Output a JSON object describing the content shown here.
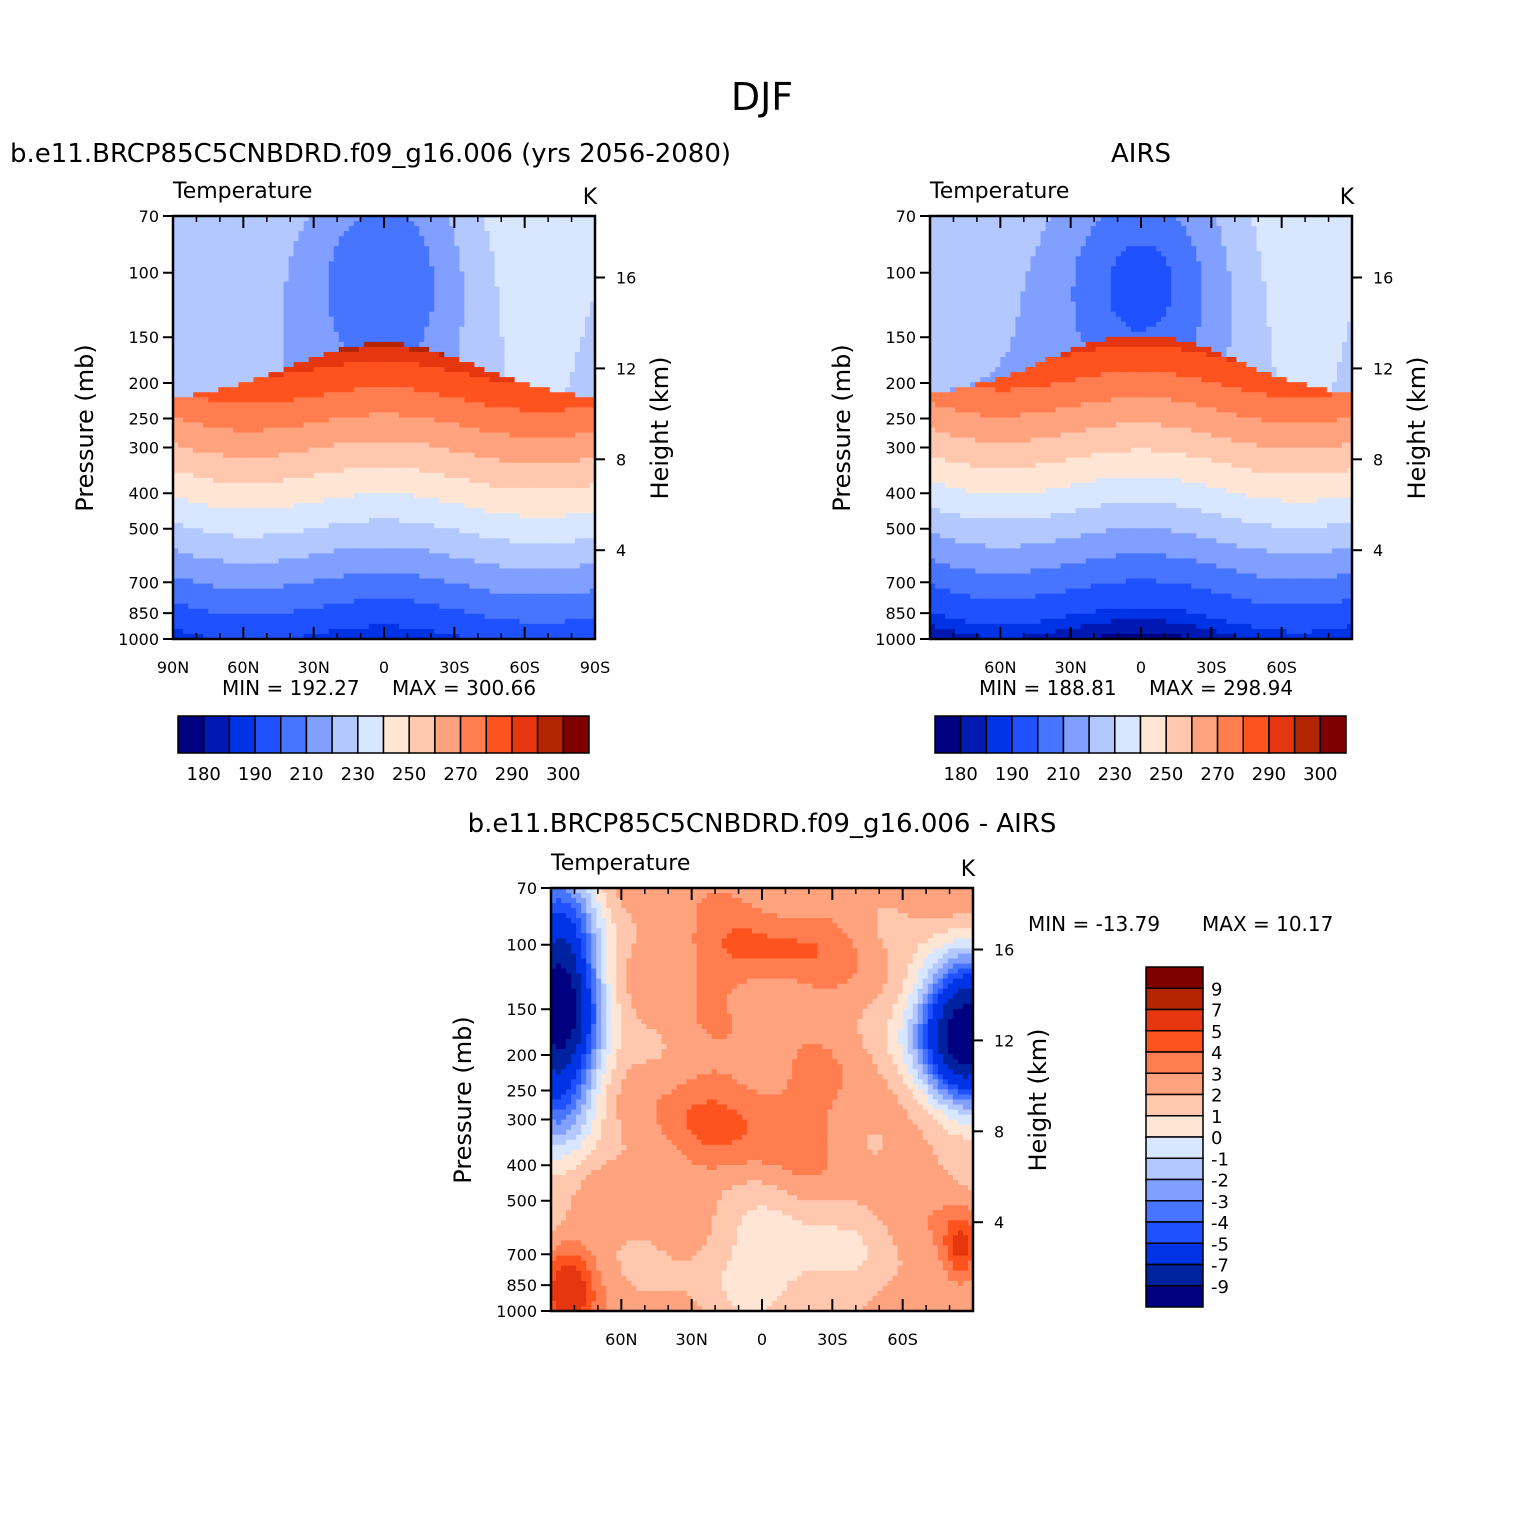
{
  "page": {
    "title": "DJF"
  },
  "palette": {
    "abs": [
      "#000080",
      "#0019b3",
      "#0033e6",
      "#1f51ff",
      "#4775ff",
      "#809fff",
      "#b3c8ff",
      "#d9e6ff",
      "#ffe6d4",
      "#ffc7ad",
      "#ffa27e",
      "#ff7d4f",
      "#ff531f",
      "#e6360f",
      "#b32400",
      "#800000"
    ],
    "diff": [
      "#000080",
      "#0022a0",
      "#0033e6",
      "#1f51ff",
      "#4775ff",
      "#809fff",
      "#b3c8ff",
      "#d9e6ff",
      "#ffe6d4",
      "#ffc7ad",
      "#ffa27e",
      "#ff7d4f",
      "#ff531f",
      "#e6360f",
      "#b32400",
      "#800000"
    ]
  },
  "axes": {
    "pressure_ticks": [
      "70",
      "100",
      "150",
      "200",
      "250",
      "300",
      "400",
      "500",
      "700",
      "850",
      "1000"
    ],
    "height_ticks": [
      "16",
      "12",
      "8",
      "4"
    ],
    "pressure_title": "Pressure  (mb)",
    "height_title": "Height  (km)"
  },
  "chart_data": [
    {
      "type": "heatmap",
      "title": "b.e11.BRCP85C5CNBDRD.f09_g16.006 (yrs  2056-2080)",
      "variable": "Temperature",
      "units": "K",
      "x_tick_labels": [
        "90N",
        "60N",
        "30N",
        "0",
        "30S",
        "60S",
        "90S"
      ],
      "xlim": [
        "90N",
        "90S"
      ],
      "ylim": [
        1000,
        70
      ],
      "min_label": "MIN  =  192.27",
      "max_label": "MAX  =  300.66",
      "min": 192.27,
      "max": 300.66,
      "colorbar_labels": [
        "180",
        "190",
        "210",
        "230",
        "250",
        "270",
        "290",
        "300"
      ]
    },
    {
      "type": "heatmap",
      "title": "AIRS",
      "variable": "Temperature",
      "units": "K",
      "x_tick_labels": [
        "60N",
        "30N",
        "0",
        "30S",
        "60S"
      ],
      "xlim": [
        "90N",
        "90S"
      ],
      "ylim": [
        1000,
        70
      ],
      "min_label": "MIN  =  188.81",
      "max_label": "MAX  =  298.94",
      "min": 188.81,
      "max": 298.94,
      "colorbar_labels": [
        "180",
        "190",
        "210",
        "230",
        "250",
        "270",
        "290",
        "300"
      ]
    },
    {
      "type": "heatmap",
      "title": "b.e11.BRCP85C5CNBDRD.f09_g16.006  -  AIRS",
      "variable": "Temperature",
      "units": "K",
      "x_tick_labels": [
        "60N",
        "30N",
        "0",
        "30S",
        "60S"
      ],
      "xlim": [
        "90N",
        "90S"
      ],
      "ylim": [
        1000,
        70
      ],
      "min_label": "MIN  =  -13.79",
      "max_label": "MAX  =    10.17",
      "min": -13.79,
      "max": 10.17,
      "colorbar_labels": [
        "9",
        "7",
        "5",
        "4",
        "3",
        "2",
        "1",
        "0",
        "-1",
        "-2",
        "-3",
        "-4",
        "-5",
        "-7",
        "-9"
      ]
    }
  ]
}
